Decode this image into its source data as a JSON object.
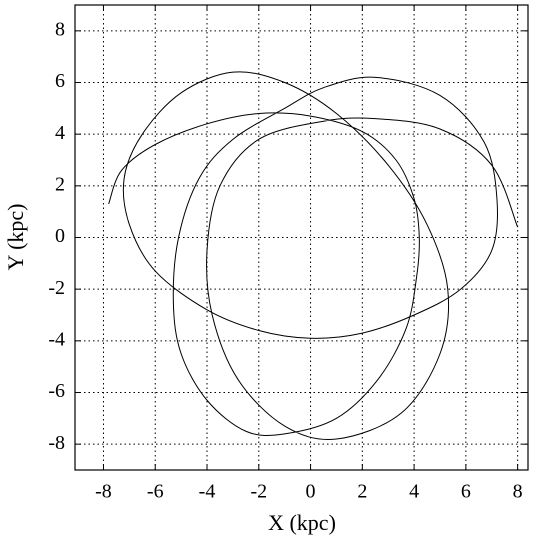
{
  "chart_data": {
    "type": "line",
    "xlabel": "X (kpc)",
    "ylabel": "Y (kpc)",
    "x": [
      -7.8,
      -7.3,
      -6,
      -4,
      -2,
      0,
      2,
      3.3,
      4,
      4.2,
      4.1,
      3.7,
      2.6,
      1,
      -1,
      -2.5,
      -4,
      -5,
      -5.3,
      -5.1,
      -4.3,
      -3,
      -1,
      0.5,
      2.5,
      5,
      6.7,
      7.2,
      7,
      5.8,
      4,
      2,
      0,
      -2,
      -4,
      -6,
      -7,
      -7.2,
      -6.5,
      -5,
      -3,
      -1,
      1,
      3,
      4.5,
      5.3,
      5,
      3.5,
      1,
      -1,
      -2.8,
      -3.8,
      -4,
      -3.5,
      -2,
      0.5,
      2.5,
      5,
      7,
      8
    ],
    "series": [
      {
        "color": "#000000",
        "values": [
          1.3,
          2.6,
          3.6,
          4.4,
          4.8,
          4.7,
          4.1,
          3,
          1.5,
          0,
          -1.5,
          -3.5,
          -5.5,
          -7,
          -7.6,
          -7.5,
          -6.3,
          -4.5,
          -2.5,
          0,
          2.3,
          3.8,
          5,
          5.8,
          6.2,
          5.5,
          3.7,
          1.5,
          -0.5,
          -2,
          -3,
          -3.7,
          -3.9,
          -3.6,
          -2.8,
          -1.3,
          0.5,
          2.3,
          4,
          5.6,
          6.4,
          6,
          4.8,
          2.8,
          0.5,
          -2,
          -4.5,
          -6.8,
          -7.8,
          -7.3,
          -5.5,
          -3,
          -0.5,
          2,
          3.8,
          4.5,
          4.6,
          4.2,
          2.8,
          0.4
        ]
      }
    ],
    "xlim": [
      -9.1,
      8.4
    ],
    "ylim": [
      -9,
      9
    ],
    "xticks": [
      -8,
      -6,
      -4,
      -2,
      0,
      2,
      4,
      6,
      8
    ],
    "yticks": [
      -8,
      -6,
      -4,
      -2,
      0,
      2,
      4,
      6,
      8
    ],
    "grid": true
  }
}
